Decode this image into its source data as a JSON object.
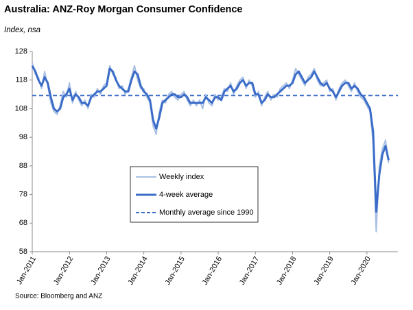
{
  "chart_data": {
    "type": "line",
    "title": "Australia: ANZ-Roy Morgan Consumer Confidence",
    "subtitle": "Index, nsa",
    "source": "Source: Bloomberg and ANZ",
    "categories": [
      "Jan-2011",
      null,
      null,
      null,
      null,
      null,
      null,
      null,
      null,
      null,
      null,
      null,
      "Jan-2012",
      null,
      null,
      null,
      null,
      null,
      null,
      null,
      null,
      null,
      null,
      null,
      "Jan-2013",
      null,
      null,
      null,
      null,
      null,
      null,
      null,
      null,
      null,
      null,
      null,
      "Jan-2014",
      null,
      null,
      null,
      null,
      null,
      null,
      null,
      null,
      null,
      null,
      null,
      "Jan-2015",
      null,
      null,
      null,
      null,
      null,
      null,
      null,
      null,
      null,
      null,
      null,
      "Jan-2016",
      null,
      null,
      null,
      null,
      null,
      null,
      null,
      null,
      null,
      null,
      null,
      "Jan-2017",
      null,
      null,
      null,
      null,
      null,
      null,
      null,
      null,
      null,
      null,
      null,
      "Jan-2018",
      null,
      null,
      null,
      null,
      null,
      null,
      null,
      null,
      null,
      null,
      null,
      "Jan-2019",
      null,
      null,
      null,
      null,
      null,
      null,
      null,
      null,
      null,
      null,
      null,
      "Jan-2020",
      null,
      null,
      null,
      null,
      null,
      null,
      null
    ],
    "series": [
      {
        "name": "Weekly index",
        "color": "#a9bfe3",
        "width": 2,
        "values": [
          124,
          120,
          119,
          115,
          121,
          116,
          110,
          107,
          106,
          109,
          114,
          112,
          117,
          110,
          114,
          111,
          109,
          111,
          108,
          113,
          112,
          115,
          113,
          116,
          117,
          123,
          120,
          119,
          115,
          116,
          113,
          115,
          119,
          123,
          118,
          115,
          115,
          112,
          110,
          102,
          99,
          107,
          111,
          110,
          113,
          114,
          112,
          111,
          113,
          114,
          111,
          109,
          111,
          109,
          111,
          108,
          113,
          110,
          109,
          113,
          111,
          112,
          115,
          114,
          117,
          113,
          116,
          118,
          119,
          115,
          118,
          116,
          112,
          114,
          109,
          112,
          114,
          111,
          113,
          112,
          115,
          116,
          117,
          115,
          118,
          122,
          120,
          118,
          116,
          119,
          120,
          122,
          118,
          116,
          117,
          118,
          114,
          115,
          111,
          115,
          117,
          118,
          116,
          114,
          117,
          114,
          112,
          111,
          109,
          107,
          96,
          65,
          88,
          94,
          97,
          89
        ]
      },
      {
        "name": "4-week average",
        "color": "#3a6cc8",
        "width": 3,
        "values": [
          123,
          121,
          118,
          116,
          119,
          117,
          112,
          108,
          107,
          108,
          112,
          113,
          115,
          111,
          113,
          112,
          110,
          110,
          109,
          112,
          113,
          114,
          114,
          115,
          116,
          122,
          121,
          118,
          116,
          115,
          114,
          114,
          118,
          121,
          120,
          116,
          114,
          113,
          111,
          104,
          101,
          105,
          110,
          111,
          112,
          113,
          113,
          112,
          112,
          113,
          112,
          110,
          110,
          110,
          110,
          110,
          112,
          111,
          110,
          112,
          112,
          111,
          114,
          115,
          116,
          114,
          115,
          117,
          118,
          116,
          117,
          117,
          113,
          113,
          110,
          111,
          113,
          112,
          112,
          113,
          114,
          115,
          116,
          116,
          117,
          120,
          121,
          119,
          117,
          118,
          119,
          121,
          119,
          117,
          116,
          117,
          115,
          114,
          112,
          114,
          116,
          117,
          117,
          115,
          116,
          115,
          113,
          112,
          110,
          108,
          100,
          72,
          85,
          92,
          95,
          90
        ]
      }
    ],
    "reference_line": {
      "name": "Monthly average since 1990",
      "value": 112.6,
      "color": "#3a6cc8"
    },
    "ylim": [
      58,
      128
    ],
    "yticks": [
      58,
      68,
      78,
      88,
      98,
      108,
      118,
      128
    ]
  }
}
